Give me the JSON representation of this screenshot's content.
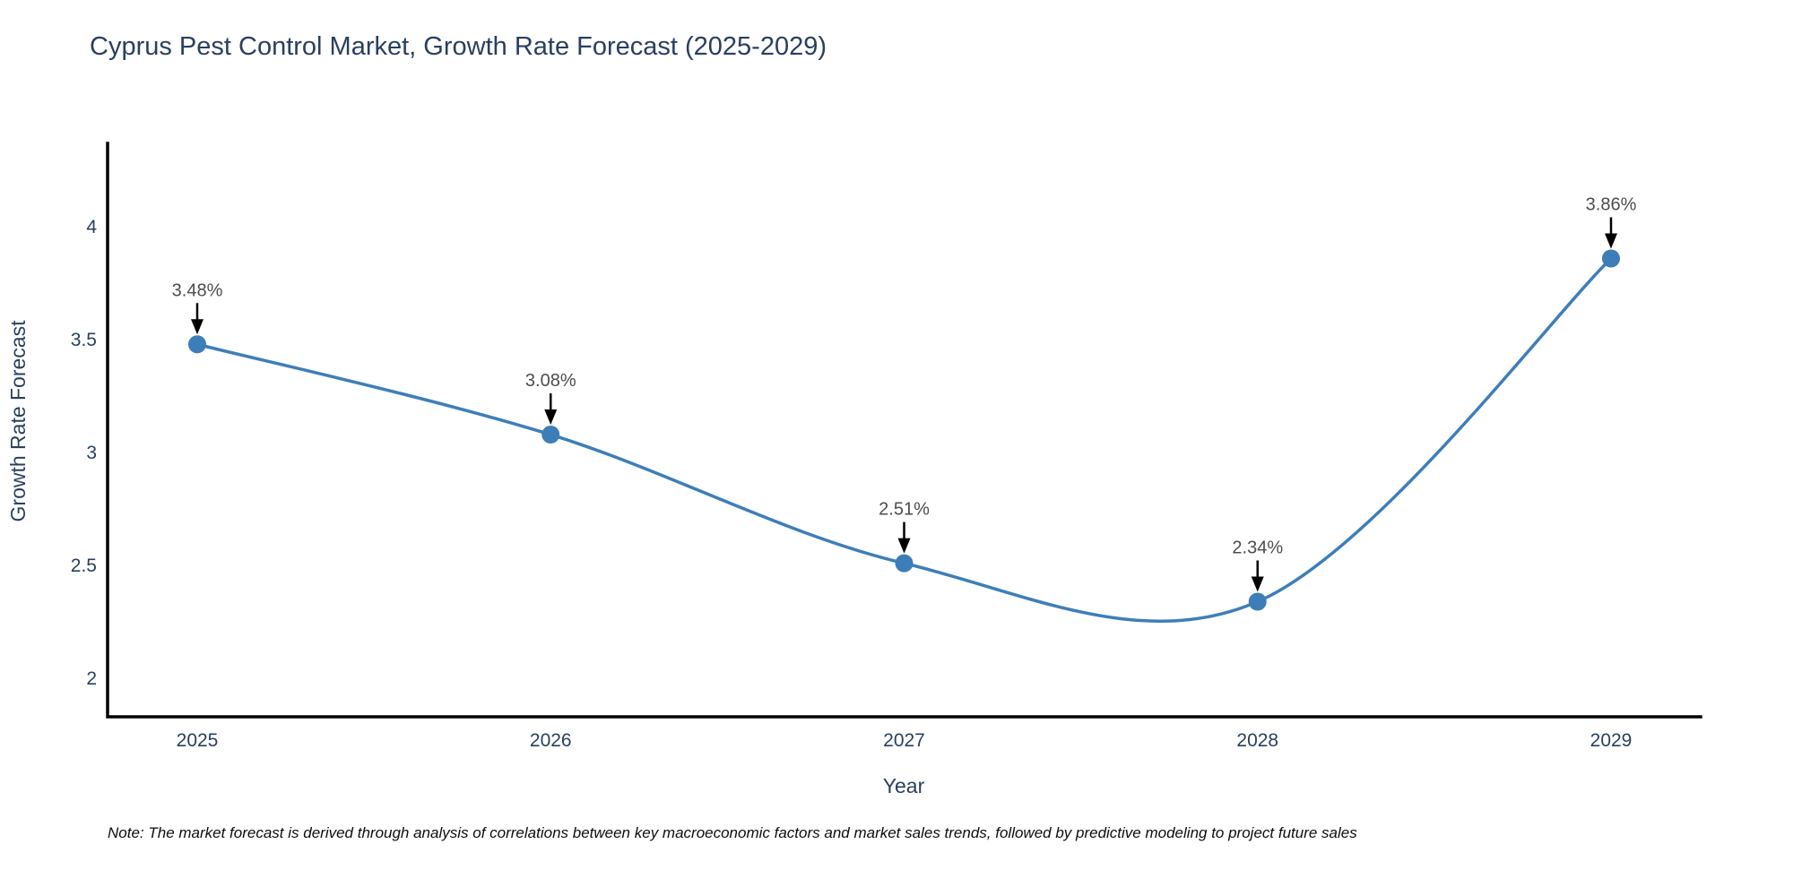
{
  "title": "Cyprus Pest Control Market, Growth Rate Forecast (2025-2029)",
  "note": "Note: The market forecast is derived through analysis of correlations between key macroeconomic factors and market sales trends, followed by predictive modeling to project future sales",
  "chart_data": {
    "type": "line",
    "line_shape": "spline",
    "title": "Cyprus Pest Control Market, Growth Rate Forecast (2025-2029)",
    "xlabel": "Year",
    "ylabel": "Growth Rate Forecast",
    "x": [
      2025,
      2026,
      2027,
      2028,
      2029
    ],
    "series": [
      {
        "name": "Growth Rate Forecast",
        "values": [
          3.48,
          3.08,
          2.51,
          2.34,
          3.86
        ]
      }
    ],
    "point_labels": [
      "3.48%",
      "3.08%",
      "2.51%",
      "2.34%",
      "3.86%"
    ],
    "xticks": [
      "2025",
      "2026",
      "2027",
      "2028",
      "2029"
    ],
    "yticks": [
      2,
      2.5,
      3,
      3.5,
      4
    ],
    "ylim": [
      1.83,
      4.37
    ],
    "grid": false,
    "legend": "none",
    "colors": {
      "line": "#3d7eb9",
      "marker": "#3d7eb9",
      "axis": "#000000",
      "annotation_arrow": "#000000",
      "annotation_text": "#4d4d4d",
      "tick_text": "#2a3f5f",
      "title_text": "#2a3f5f"
    }
  }
}
